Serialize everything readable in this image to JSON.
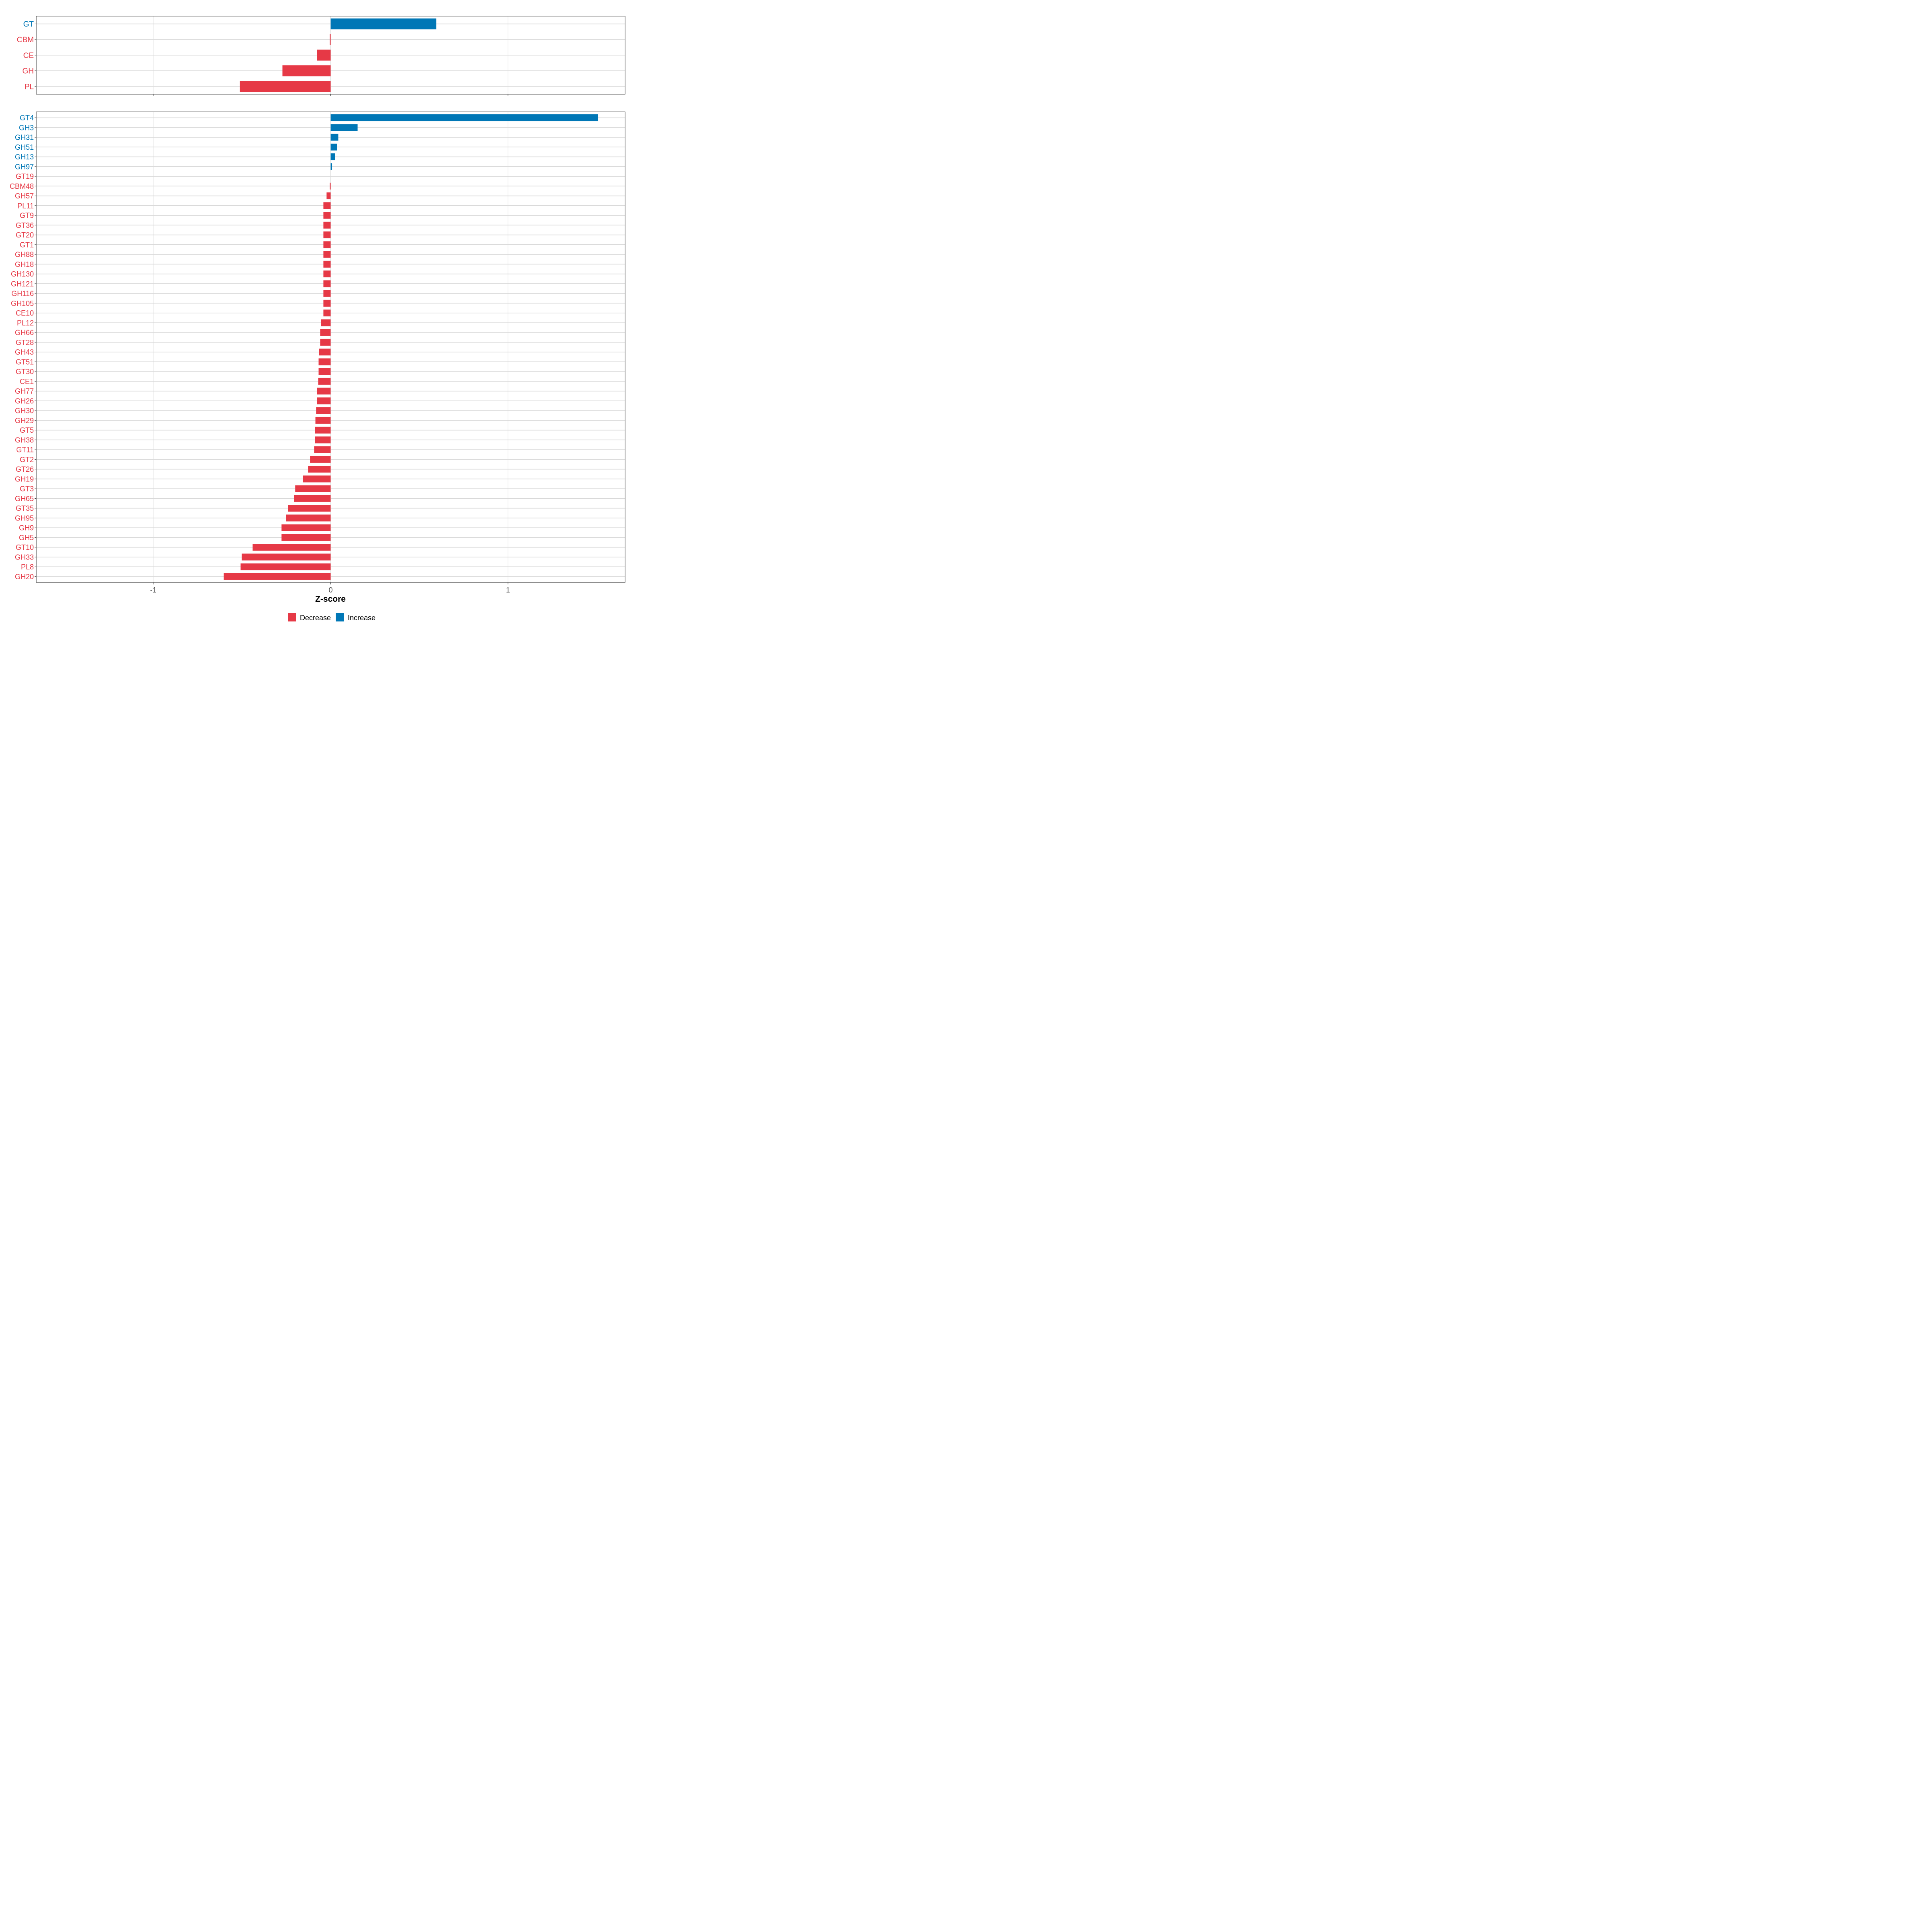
{
  "chart_data": [
    {
      "type": "bar",
      "orientation": "horizontal",
      "panel": "top",
      "categories": [
        "GT",
        "CBM",
        "CE",
        "GH",
        "PL"
      ],
      "values": [
        0.596,
        -0.005,
        -0.077,
        -0.272,
        -0.512
      ],
      "xlim": [
        -1.66,
        1.66
      ],
      "xticks": [
        -1,
        0,
        1
      ],
      "grid": true
    },
    {
      "type": "bar",
      "orientation": "horizontal",
      "panel": "bottom",
      "categories": [
        "GT4",
        "GH3",
        "GH31",
        "GH51",
        "GH13",
        "GH97",
        "GT19",
        "CBM48",
        "GH57",
        "PL11",
        "GT9",
        "GT36",
        "GT20",
        "GT1",
        "GH88",
        "GH18",
        "GH130",
        "GH121",
        "GH116",
        "GH105",
        "CE10",
        "PL12",
        "GH66",
        "GT28",
        "GH43",
        "GT51",
        "GT30",
        "CE1",
        "GH77",
        "GH26",
        "GH30",
        "GH29",
        "GT5",
        "GH38",
        "GT11",
        "GT2",
        "GT26",
        "GH19",
        "GT3",
        "GH65",
        "GT35",
        "GH95",
        "GH9",
        "GH5",
        "GT10",
        "GH33",
        "PL8",
        "GH20"
      ],
      "values": [
        1.508,
        0.152,
        0.043,
        0.036,
        0.025,
        0.008,
        0.0,
        -0.005,
        -0.023,
        -0.041,
        -0.041,
        -0.041,
        -0.041,
        -0.041,
        -0.041,
        -0.041,
        -0.041,
        -0.041,
        -0.041,
        -0.041,
        -0.041,
        -0.054,
        -0.059,
        -0.059,
        -0.066,
        -0.068,
        -0.068,
        -0.07,
        -0.077,
        -0.077,
        -0.082,
        -0.086,
        -0.088,
        -0.088,
        -0.093,
        -0.116,
        -0.127,
        -0.156,
        -0.2,
        -0.206,
        -0.24,
        -0.252,
        -0.277,
        -0.277,
        -0.44,
        -0.501,
        -0.508,
        -0.603
      ],
      "xlim": [
        -1.66,
        1.66
      ],
      "xticks": [
        -1,
        0,
        1
      ],
      "xtick_labels": [
        "-1",
        "0",
        "1"
      ],
      "xlabel": "Z-score",
      "grid": true
    }
  ],
  "legend": {
    "placement": "bottom",
    "items": [
      {
        "label": "Decrease",
        "color": "#E63946"
      },
      {
        "label": "Increase",
        "color": "#0077B6"
      }
    ]
  }
}
